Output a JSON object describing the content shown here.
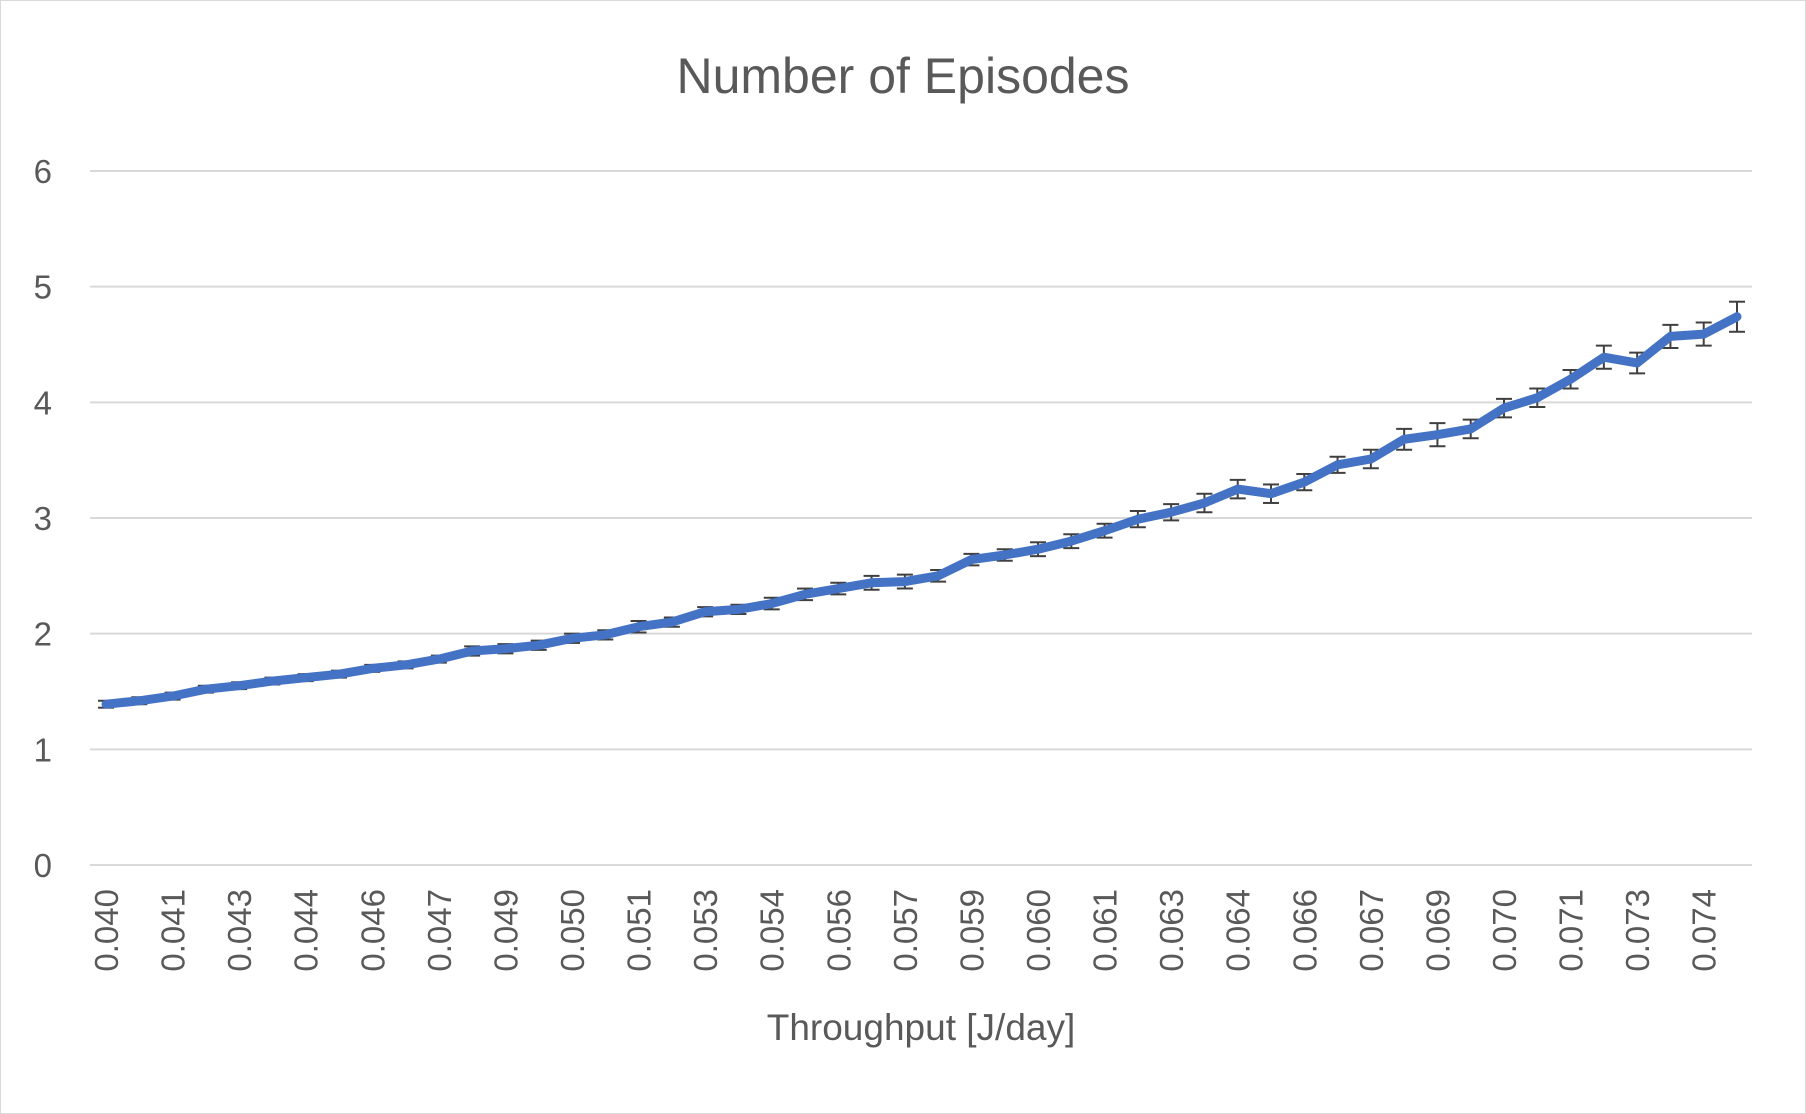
{
  "chart_data": {
    "type": "line",
    "title": "Number of Episodes",
    "xlabel": "Throughput [J/day]",
    "ylabel": "",
    "ylim": [
      0,
      6
    ],
    "yticks": [
      "0",
      "1",
      "2",
      "3",
      "4",
      "5",
      "6"
    ],
    "grid": true,
    "legend": "none",
    "x_tick_labels": [
      "0.040",
      "0.041",
      "0.043",
      "0.044",
      "0.046",
      "0.047",
      "0.049",
      "0.050",
      "0.051",
      "0.053",
      "0.054",
      "0.056",
      "0.057",
      "0.059",
      "0.060",
      "0.061",
      "0.063",
      "0.064",
      "0.066",
      "0.067",
      "0.069",
      "0.070",
      "0.071",
      "0.073",
      "0.074"
    ],
    "series": [
      {
        "color": "#4472c4",
        "values": [
          1.39,
          1.42,
          1.46,
          1.52,
          1.55,
          1.59,
          1.62,
          1.65,
          1.7,
          1.73,
          1.78,
          1.85,
          1.87,
          1.9,
          1.96,
          1.99,
          2.06,
          2.1,
          2.19,
          2.21,
          2.26,
          2.34,
          2.39,
          2.44,
          2.45,
          2.5,
          2.64,
          2.68,
          2.73,
          2.8,
          2.89,
          2.99,
          3.05,
          3.13,
          3.25,
          3.21,
          3.31,
          3.46,
          3.51,
          3.68,
          3.72,
          3.77,
          3.95,
          4.04,
          4.2,
          4.39,
          4.34,
          4.57,
          4.59,
          4.74
        ],
        "error": [
          0.03,
          0.03,
          0.03,
          0.03,
          0.03,
          0.03,
          0.03,
          0.03,
          0.03,
          0.03,
          0.03,
          0.04,
          0.04,
          0.04,
          0.04,
          0.04,
          0.05,
          0.04,
          0.04,
          0.04,
          0.05,
          0.05,
          0.05,
          0.06,
          0.06,
          0.05,
          0.05,
          0.05,
          0.06,
          0.06,
          0.06,
          0.07,
          0.07,
          0.08,
          0.08,
          0.08,
          0.07,
          0.07,
          0.08,
          0.09,
          0.1,
          0.08,
          0.08,
          0.08,
          0.08,
          0.1,
          0.09,
          0.1,
          0.1,
          0.13
        ]
      }
    ]
  }
}
